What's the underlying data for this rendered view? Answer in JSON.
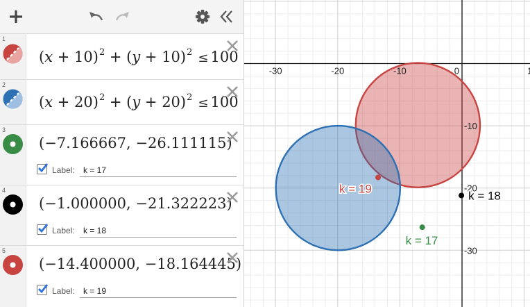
{
  "toolbar": {
    "add_icon": "plus-icon",
    "undo_icon": "undo-icon",
    "redo_icon": "redo-icon",
    "settings_icon": "gear-icon",
    "collapse_icon": "double-chevron-left-icon"
  },
  "expressions": [
    {
      "index": "1",
      "color": "#c74440",
      "kind": "inequality",
      "center_x": "10",
      "center_y": "10",
      "rhs": "100"
    },
    {
      "index": "2",
      "color": "#2d70b3",
      "kind": "inequality",
      "center_x": "20",
      "center_y": "20",
      "rhs": "100"
    },
    {
      "index": "3",
      "color": "#388c46",
      "kind": "point",
      "x": "−7.166667",
      "y": "−26.111115",
      "label_caption": "Label:",
      "label_value": "k = 17",
      "label_checked": true
    },
    {
      "index": "4",
      "color": "#000000",
      "kind": "point",
      "x": "−1.000000",
      "y": "−21.322223",
      "label_caption": "Label:",
      "label_value": "k = 18",
      "label_checked": true
    },
    {
      "index": "5",
      "color": "#c74440",
      "kind": "point",
      "x": "−14.400000",
      "y": "−18.164445",
      "label_caption": "Label:",
      "label_value": "k = 19",
      "label_checked": true
    }
  ],
  "graph": {
    "x_ticks": [
      "-30",
      "-20",
      "-10",
      "0",
      "1"
    ],
    "y_ticks": [
      "-10",
      "-20",
      "-30"
    ],
    "circles": [
      {
        "cx": -7.1,
        "cy": -9.9,
        "r": 10,
        "color": "#c74440"
      },
      {
        "cx": -19.95,
        "cy": -20,
        "r": 10,
        "color": "#2d70b3"
      }
    ],
    "points": [
      {
        "x": -6.4,
        "y": -26.3,
        "color": "#388c46",
        "label": "k = 17"
      },
      {
        "x": -0.1,
        "y": -21.2,
        "color": "#000000",
        "label": "k = 18"
      },
      {
        "x": -13.5,
        "y": -18.3,
        "color": "#c74440",
        "label": "k = 19"
      }
    ]
  }
}
